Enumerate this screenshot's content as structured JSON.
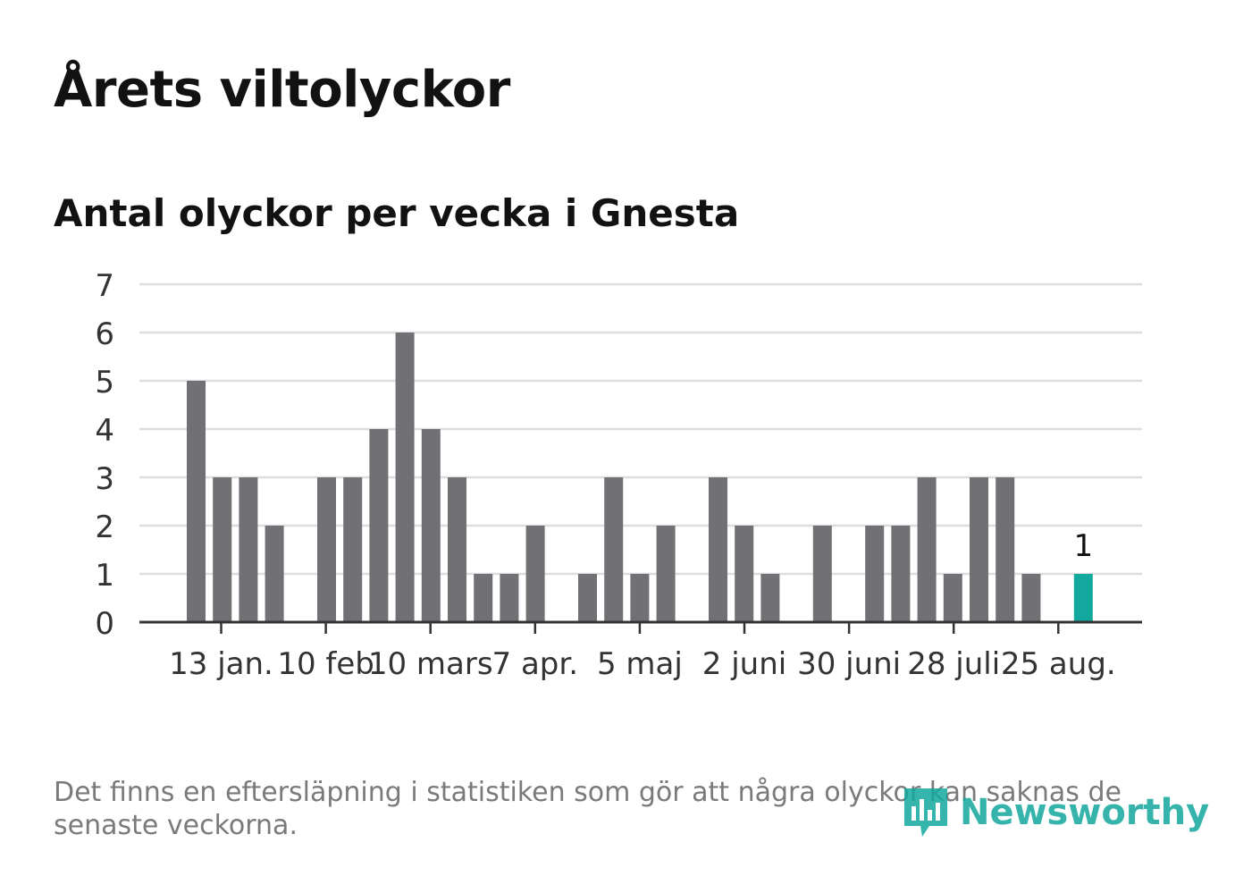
{
  "header": {
    "title": "Årets viltolyckor",
    "subtitle": "Antal olyckor per vecka i Gnesta"
  },
  "footer": {
    "note": "Det finns en eftersläpning i statistiken som gör att några olyckor kan saknas de senaste veckorna.",
    "brand": "Newsworthy",
    "brand_icon": "newsworthy-logo-icon"
  },
  "colors": {
    "bar": "#717075",
    "highlight": "#13a89e",
    "grid": "#dddddd",
    "axis": "#333333",
    "text": "#333333"
  },
  "chart_data": {
    "type": "bar",
    "ylim": [
      0,
      7
    ],
    "yticks": [
      0,
      1,
      2,
      3,
      4,
      5,
      6,
      7
    ],
    "grid": true,
    "x_tick_labels": [
      "13 jan.",
      "10 feb",
      "10 mars",
      "7 apr.",
      "5 maj",
      "2 juni",
      "30 juni",
      "28 juli",
      "25 aug."
    ],
    "values": [
      5,
      3,
      3,
      2,
      0,
      3,
      3,
      4,
      6,
      4,
      3,
      1,
      1,
      2,
      0,
      1,
      3,
      1,
      2,
      0,
      3,
      2,
      1,
      0,
      2,
      0,
      2,
      2,
      3,
      1,
      3,
      3,
      1,
      0,
      1
    ],
    "highlight_index": 34,
    "highlight_label": "1"
  }
}
